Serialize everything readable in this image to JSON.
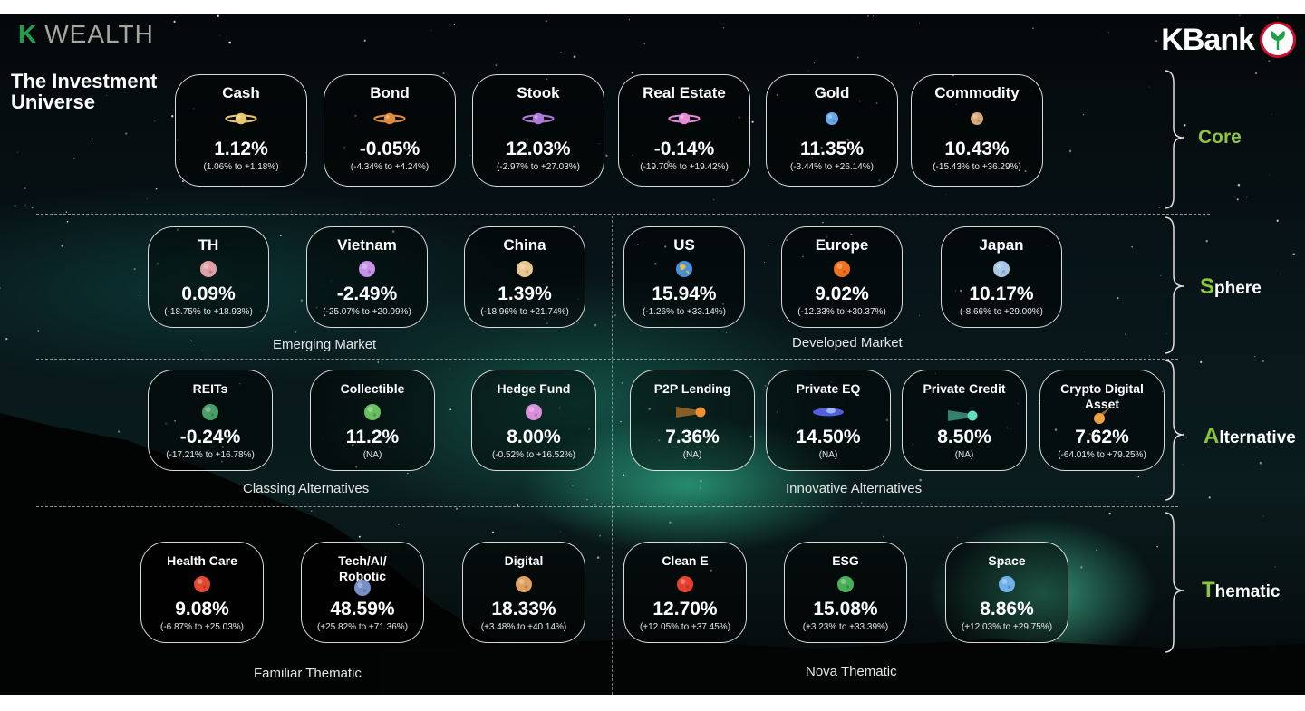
{
  "brand": {
    "k_letter": "K",
    "wealth": "WEALTH",
    "kbank": "KBank"
  },
  "title": {
    "line1": "The Investment",
    "line2": "Universe"
  },
  "categories": {
    "core": "Core",
    "sphere": {
      "first": "S",
      "rest": "phere"
    },
    "alternative": {
      "first": "A",
      "rest": "lternative"
    },
    "thematic": {
      "first": "T",
      "rest": "hematic"
    }
  },
  "group_labels": {
    "emerging": "Emerging Market",
    "developed": "Developed Market",
    "classing": "Classing Alternatives",
    "innovative": "Innovative Alternatives",
    "familiar": "Familiar Thematic",
    "nova": "Nova Thematic"
  },
  "core": [
    {
      "name": "Cash",
      "pct": "1.12%",
      "range": "(1.06% to +1.18%)",
      "icon": "ringed-planet-icon",
      "color": "#e8c86a"
    },
    {
      "name": "Bond",
      "pct": "-0.05%",
      "range": "(-4.34% to +4.24%)",
      "icon": "ringed-planet-icon",
      "color": "#e08a3c"
    },
    {
      "name": "Stook",
      "pct": "12.03%",
      "range": "(-2.97% to +27.03%)",
      "icon": "ringed-planet-icon",
      "color": "#b07ad8"
    },
    {
      "name": "Real Estate",
      "pct": "-0.14%",
      "range": "(-19.70% to +19.42%)",
      "icon": "ringed-planet-icon",
      "color": "#e88ad8"
    },
    {
      "name": "Gold",
      "pct": "11.35%",
      "range": "(-3.44% to +26.14%)",
      "icon": "planet-icon",
      "color": "#6aa8e8"
    },
    {
      "name": "Commodity",
      "pct": "10.43%",
      "range": "(-15.43% to +36.29%)",
      "icon": "planet-icon",
      "color": "#d8a878"
    }
  ],
  "sphere": [
    {
      "name": "TH",
      "pct": "0.09%",
      "range": "(-18.75% to +18.93%)",
      "icon": "planet-icon",
      "color": "#e0a0a8"
    },
    {
      "name": "Vietnam",
      "pct": "-2.49%",
      "range": "(-25.07% to +20.09%)",
      "icon": "planet-icon",
      "color": "#c890e8"
    },
    {
      "name": "China",
      "pct": "1.39%",
      "range": "(-18.96% to +21.74%)",
      "icon": "planet-icon",
      "color": "#e8c890"
    },
    {
      "name": "US",
      "pct": "15.94%",
      "range": "(-1.26% to +33.14%)",
      "icon": "earth-icon",
      "color": "#4a90d8"
    },
    {
      "name": "Europe",
      "pct": "9.02%",
      "range": "(-12.33% to +30.37%)",
      "icon": "planet-icon",
      "color": "#f07020"
    },
    {
      "name": "Japan",
      "pct": "10.17%",
      "range": "(-8.66% to +29.00%)",
      "icon": "planet-icon",
      "color": "#a8c8e8"
    }
  ],
  "alternative": [
    {
      "name": "REITs",
      "pct": "-0.24%",
      "range": "(-17.21% to +16.78%)",
      "icon": "planet-icon",
      "color": "#48a068"
    },
    {
      "name": "Collectible",
      "pct": "11.2%",
      "range": "(NA)",
      "icon": "planet-icon",
      "color": "#68c060"
    },
    {
      "name": "Hedge Fund",
      "pct": "8.00%",
      "range": "(-0.52% to +16.52%)",
      "icon": "planet-icon",
      "color": "#d890d8"
    },
    {
      "name": "P2P Lending",
      "pct": "7.36%",
      "range": "(NA)",
      "icon": "comet-icon",
      "color": "#f09030"
    },
    {
      "name": "Private EQ",
      "pct": "14.50%",
      "range": "(NA)",
      "icon": "spaceship-icon",
      "color": "#5060e0"
    },
    {
      "name": "Private Credit",
      "pct": "8.50%",
      "range": "(NA)",
      "icon": "comet-icon",
      "color": "#60e0c0"
    },
    {
      "name": "Crypto Digital Asset",
      "pct": "7.62%",
      "range": "(-64.01% to +79.25%)",
      "icon": "meteor-icon",
      "color": "#f0a040"
    }
  ],
  "thematic": [
    {
      "name": "Health Care",
      "pct": "9.08%",
      "range": "(-6.87% to +25.03%)",
      "icon": "planet-icon",
      "color": "#e04830"
    },
    {
      "name": "Tech/AI/ Robotic",
      "pct": "48.59%",
      "range": "(+25.82% to +71.36%)",
      "icon": "planet-icon",
      "color": "#7890c8"
    },
    {
      "name": "Digital",
      "pct": "18.33%",
      "range": "(+3.48% to +40.14%)",
      "icon": "planet-icon",
      "color": "#e0a060"
    },
    {
      "name": "Clean E",
      "pct": "12.70%",
      "range": "(+12.05% to +37.45%)",
      "icon": "planet-icon",
      "color": "#e84030"
    },
    {
      "name": "ESG",
      "pct": "15.08%",
      "range": "(+3.23% to +33.39%)",
      "icon": "planet-icon",
      "color": "#48b058"
    },
    {
      "name": "Space",
      "pct": "8.86%",
      "range": "(+12.03% to +29.75%)",
      "icon": "planet-icon",
      "color": "#70b0e8"
    }
  ]
}
